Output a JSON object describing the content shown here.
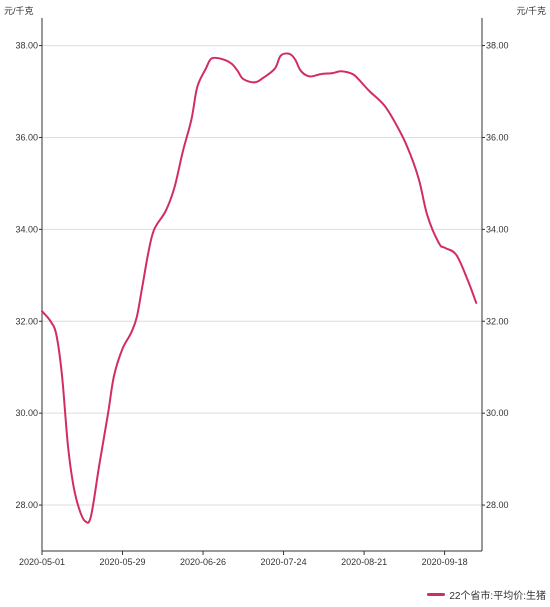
{
  "chart_data": {
    "type": "line",
    "unit_left": "元/千克",
    "unit_right": "元/千克",
    "x_tick_labels": [
      "2020-05-01",
      "2020-05-29",
      "2020-06-26",
      "2020-07-24",
      "2020-08-21",
      "2020-09-18"
    ],
    "x_range": [
      "2020-05-01",
      "2020-10-01"
    ],
    "ylim": [
      27,
      38.6
    ],
    "y_ticks": [
      "28.00",
      "30.00",
      "32.00",
      "34.00",
      "36.00",
      "38.00"
    ],
    "grid": true,
    "legend_position": "bottom-right",
    "colors": {
      "line": "#d12e5f",
      "grid": "#dddddd",
      "axis": "#333333"
    },
    "series": [
      {
        "name": "22个省市:平均价:生猪",
        "points": [
          [
            "2020-05-01",
            32.22
          ],
          [
            "2020-05-04",
            32.0
          ],
          [
            "2020-05-06",
            31.7
          ],
          [
            "2020-05-08",
            30.8
          ],
          [
            "2020-05-10",
            29.3
          ],
          [
            "2020-05-12",
            28.4
          ],
          [
            "2020-05-14",
            27.9
          ],
          [
            "2020-05-16",
            27.65
          ],
          [
            "2020-05-18",
            27.75
          ],
          [
            "2020-05-21",
            28.9
          ],
          [
            "2020-05-24",
            30.0
          ],
          [
            "2020-05-26",
            30.8
          ],
          [
            "2020-05-29",
            31.4
          ],
          [
            "2020-06-01",
            31.75
          ],
          [
            "2020-06-03",
            32.1
          ],
          [
            "2020-06-05",
            32.8
          ],
          [
            "2020-06-07",
            33.5
          ],
          [
            "2020-06-09",
            34.0
          ],
          [
            "2020-06-13",
            34.4
          ],
          [
            "2020-06-16",
            34.9
          ],
          [
            "2020-06-19",
            35.7
          ],
          [
            "2020-06-22",
            36.4
          ],
          [
            "2020-06-24",
            37.1
          ],
          [
            "2020-06-27",
            37.5
          ],
          [
            "2020-06-29",
            37.72
          ],
          [
            "2020-07-03",
            37.7
          ],
          [
            "2020-07-06",
            37.6
          ],
          [
            "2020-07-08",
            37.45
          ],
          [
            "2020-07-10",
            37.27
          ],
          [
            "2020-07-14",
            37.2
          ],
          [
            "2020-07-17",
            37.3
          ],
          [
            "2020-07-21",
            37.5
          ],
          [
            "2020-07-23",
            37.78
          ],
          [
            "2020-07-26",
            37.82
          ],
          [
            "2020-07-28",
            37.7
          ],
          [
            "2020-07-30",
            37.45
          ],
          [
            "2020-08-02",
            37.33
          ],
          [
            "2020-08-06",
            37.38
          ],
          [
            "2020-08-10",
            37.4
          ],
          [
            "2020-08-13",
            37.44
          ],
          [
            "2020-08-17",
            37.38
          ],
          [
            "2020-08-19",
            37.27
          ],
          [
            "2020-08-23",
            37.0
          ],
          [
            "2020-08-28",
            36.7
          ],
          [
            "2020-09-01",
            36.3
          ],
          [
            "2020-09-05",
            35.8
          ],
          [
            "2020-09-09",
            35.1
          ],
          [
            "2020-09-12",
            34.3
          ],
          [
            "2020-09-16",
            33.7
          ],
          [
            "2020-09-18",
            33.6
          ],
          [
            "2020-09-22",
            33.45
          ],
          [
            "2020-09-26",
            32.9
          ],
          [
            "2020-09-29",
            32.4
          ]
        ]
      }
    ]
  }
}
